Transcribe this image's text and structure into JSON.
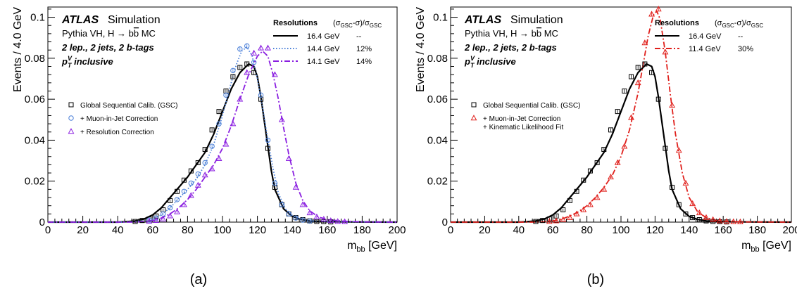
{
  "chart_data": [
    {
      "type": "line",
      "panel_label": "(a)",
      "xlabel": "m",
      "xlabel_sub": "bb",
      "xlabel_unit": "[GeV]",
      "ylabel": "Events / 4.0 GeV",
      "xlim": [
        0,
        200
      ],
      "ylim": [
        0,
        0.105
      ],
      "xticks": [
        0,
        20,
        40,
        60,
        80,
        100,
        120,
        140,
        160,
        180,
        200
      ],
      "yticks": [
        0,
        0.02,
        0.04,
        0.06,
        0.08,
        0.1
      ],
      "ytick_labels": [
        "0",
        "0.02",
        "0.04",
        "0.06",
        "0.08",
        "0.1"
      ],
      "annotations": {
        "experiment": "ATLAS",
        "experiment_suffix": "Simulation",
        "sample_prefix": "Pythia VH, H → b",
        "sample_bbar": "b",
        "sample_suffix": " MC",
        "selection": "2 lep., 2 jets, 2 b-tags",
        "pt_p": "p",
        "pt_sup": "V",
        "pt_sub": "T",
        "pt_rest": " inclusive"
      },
      "resolution_table": {
        "title": "Resolutions",
        "formula": "(σ",
        "formula_sub1": "GSC",
        "formula_mid": "-σ)/σ",
        "formula_sub2": "GSC",
        "rows": [
          {
            "width": "16.4 GeV",
            "improvement": "--",
            "color": "#000000",
            "dash": "solid"
          },
          {
            "width": "14.4 GeV",
            "improvement": "12%",
            "color": "#4a7fd8",
            "dash": "dotted"
          },
          {
            "width": "14.1 GeV",
            "improvement": "14%",
            "color": "#8a1ee0",
            "dash": "dashdot"
          }
        ]
      },
      "legend": [
        {
          "label": "Global Sequential Calib. (GSC)",
          "marker": "square",
          "color": "#000000"
        },
        {
          "label": "+ Muon-in-Jet Correction",
          "marker": "circle",
          "color": "#4a7fd8"
        },
        {
          "label": "+ Resolution Correction",
          "marker": "triangle",
          "color": "#8a1ee0"
        }
      ],
      "series": [
        {
          "marker": "square",
          "color": "#000000",
          "dash": "solid",
          "x": [
            50,
            54,
            58,
            62,
            66,
            70,
            74,
            78,
            82,
            86,
            90,
            94,
            98,
            102,
            106,
            110,
            114,
            118,
            122,
            126,
            130,
            134,
            138,
            142,
            146,
            150,
            154,
            158,
            162
          ],
          "y": [
            0.0003,
            0.0008,
            0.0015,
            0.003,
            0.006,
            0.0105,
            0.015,
            0.0205,
            0.025,
            0.029,
            0.0355,
            0.045,
            0.054,
            0.064,
            0.071,
            0.0755,
            0.0772,
            0.073,
            0.06,
            0.036,
            0.017,
            0.0085,
            0.004,
            0.0022,
            0.0012,
            0.0006,
            0.0003,
            0.0002,
            0.0001
          ],
          "curve_x": [
            0,
            40,
            45,
            50,
            55,
            60,
            65,
            70,
            75,
            80,
            85,
            90,
            95,
            100,
            105,
            110,
            115,
            118,
            120,
            122,
            125,
            128,
            130,
            135,
            140,
            145,
            150,
            160,
            170,
            200
          ],
          "curve_y": [
            0,
            0,
            0.0002,
            0.0006,
            0.0015,
            0.0035,
            0.007,
            0.012,
            0.017,
            0.022,
            0.028,
            0.034,
            0.043,
            0.054,
            0.065,
            0.073,
            0.0772,
            0.076,
            0.071,
            0.061,
            0.043,
            0.025,
            0.016,
            0.0065,
            0.0028,
            0.0013,
            0.0006,
            0.0002,
            0.0001,
            0
          ]
        },
        {
          "marker": "circle",
          "color": "#4a7fd8",
          "dash": "dotted",
          "x": [
            58,
            62,
            66,
            70,
            74,
            78,
            82,
            86,
            90,
            94,
            98,
            102,
            106,
            110,
            114,
            118,
            122,
            126,
            130,
            134,
            138,
            142,
            146,
            150
          ],
          "y": [
            0.001,
            0.002,
            0.004,
            0.007,
            0.011,
            0.015,
            0.019,
            0.0235,
            0.029,
            0.037,
            0.048,
            0.062,
            0.074,
            0.0845,
            0.086,
            0.078,
            0.062,
            0.04,
            0.019,
            0.0085,
            0.004,
            0.002,
            0.001,
            0.0005
          ],
          "curve_x": [
            0,
            45,
            50,
            55,
            60,
            65,
            70,
            75,
            80,
            85,
            90,
            95,
            100,
            105,
            108,
            111,
            114,
            117,
            120,
            123,
            126,
            129,
            132,
            136,
            140,
            145,
            150,
            160,
            200
          ],
          "curve_y": [
            0,
            0,
            0.0003,
            0.0008,
            0.0015,
            0.0035,
            0.007,
            0.0115,
            0.016,
            0.021,
            0.028,
            0.038,
            0.052,
            0.068,
            0.077,
            0.0835,
            0.0855,
            0.081,
            0.07,
            0.056,
            0.04,
            0.026,
            0.014,
            0.0065,
            0.0032,
            0.0014,
            0.0006,
            0.0002,
            0
          ]
        },
        {
          "marker": "triangle",
          "color": "#8a1ee0",
          "dash": "dashdot",
          "x": [
            58,
            62,
            66,
            70,
            74,
            78,
            82,
            86,
            90,
            94,
            98,
            102,
            106,
            110,
            114,
            118,
            122,
            126,
            130,
            134,
            138,
            142,
            146,
            150,
            154,
            158,
            162,
            166,
            170
          ],
          "y": [
            0.0004,
            0.0008,
            0.0015,
            0.003,
            0.005,
            0.0085,
            0.013,
            0.018,
            0.023,
            0.026,
            0.031,
            0.038,
            0.048,
            0.06,
            0.073,
            0.0825,
            0.085,
            0.085,
            0.072,
            0.05,
            0.031,
            0.017,
            0.0085,
            0.0045,
            0.0025,
            0.0014,
            0.0007,
            0.0003,
            0.0002
          ],
          "curve_x": [
            0,
            50,
            55,
            60,
            65,
            70,
            75,
            80,
            85,
            90,
            95,
            100,
            105,
            110,
            115,
            120,
            123,
            126,
            129,
            132,
            135,
            138,
            142,
            146,
            150,
            155,
            160,
            170,
            180,
            200
          ],
          "curve_y": [
            0,
            0,
            0.0003,
            0.0008,
            0.002,
            0.004,
            0.007,
            0.011,
            0.016,
            0.022,
            0.028,
            0.036,
            0.047,
            0.06,
            0.072,
            0.081,
            0.0835,
            0.081,
            0.072,
            0.06,
            0.046,
            0.033,
            0.019,
            0.0105,
            0.0055,
            0.0025,
            0.0012,
            0.0004,
            0.0001,
            0
          ]
        }
      ]
    },
    {
      "type": "line",
      "panel_label": "(b)",
      "xlabel": "m",
      "xlabel_sub": "bb",
      "xlabel_unit": "[GeV]",
      "ylabel": "Events / 4.0 GeV",
      "xlim": [
        0,
        200
      ],
      "ylim": [
        0,
        0.105
      ],
      "xticks": [
        0,
        20,
        40,
        60,
        80,
        100,
        120,
        140,
        160,
        180,
        200
      ],
      "yticks": [
        0,
        0.02,
        0.04,
        0.06,
        0.08,
        0.1
      ],
      "ytick_labels": [
        "0",
        "0.02",
        "0.04",
        "0.06",
        "0.08",
        "0.1"
      ],
      "annotations": {
        "experiment": "ATLAS",
        "experiment_suffix": "Simulation",
        "sample_prefix": "Pythia VH, H → b",
        "sample_bbar": "b",
        "sample_suffix": " MC",
        "selection": "2 lep., 2 jets, 2 b-tags",
        "pt_p": "p",
        "pt_sup": "V",
        "pt_sub": "T",
        "pt_rest": " inclusive"
      },
      "resolution_table": {
        "title": "Resolutions",
        "formula": "(σ",
        "formula_sub1": "GSC",
        "formula_mid": "-σ)/σ",
        "formula_sub2": "GSC",
        "rows": [
          {
            "width": "16.4 GeV",
            "improvement": "--",
            "color": "#000000",
            "dash": "solid"
          },
          {
            "width": "11.4 GeV",
            "improvement": "30%",
            "color": "#e0201c",
            "dash": "dashdot"
          }
        ]
      },
      "legend": [
        {
          "label": "Global Sequential Calib. (GSC)",
          "marker": "square",
          "color": "#000000"
        },
        {
          "label": "+ Muon-in-Jet Correction",
          "label2": "+ Kinematic Likelihood Fit",
          "marker": "triangle",
          "color": "#e0201c"
        }
      ],
      "series": [
        {
          "marker": "square",
          "color": "#000000",
          "dash": "solid",
          "x": [
            50,
            54,
            58,
            62,
            66,
            70,
            74,
            78,
            82,
            86,
            90,
            94,
            98,
            102,
            106,
            110,
            114,
            118,
            122,
            126,
            130,
            134,
            138,
            142,
            146,
            150,
            154,
            158,
            162
          ],
          "y": [
            0.0003,
            0.0008,
            0.0015,
            0.003,
            0.006,
            0.0105,
            0.015,
            0.0205,
            0.025,
            0.029,
            0.0355,
            0.045,
            0.054,
            0.064,
            0.071,
            0.0755,
            0.0772,
            0.073,
            0.06,
            0.036,
            0.017,
            0.0085,
            0.004,
            0.0022,
            0.0012,
            0.0006,
            0.0003,
            0.0002,
            0.0001
          ],
          "curve_x": [
            0,
            40,
            45,
            50,
            55,
            60,
            65,
            70,
            75,
            80,
            85,
            90,
            95,
            100,
            105,
            110,
            115,
            118,
            120,
            122,
            125,
            128,
            130,
            135,
            140,
            145,
            150,
            160,
            170,
            200
          ],
          "curve_y": [
            0,
            0,
            0.0002,
            0.0006,
            0.0015,
            0.0035,
            0.007,
            0.012,
            0.017,
            0.022,
            0.028,
            0.034,
            0.043,
            0.054,
            0.065,
            0.073,
            0.0772,
            0.076,
            0.071,
            0.061,
            0.043,
            0.025,
            0.016,
            0.0065,
            0.0028,
            0.0013,
            0.0006,
            0.0002,
            0.0001,
            0
          ]
        },
        {
          "marker": "triangle",
          "color": "#e0201c",
          "dash": "dashdot",
          "x": [
            58,
            62,
            66,
            70,
            74,
            78,
            82,
            86,
            90,
            94,
            98,
            102,
            106,
            110,
            114,
            118,
            122,
            126,
            130,
            134,
            138,
            142,
            146,
            150,
            154,
            158,
            162,
            166,
            170
          ],
          "y": [
            0.0003,
            0.0006,
            0.0012,
            0.0022,
            0.004,
            0.006,
            0.0085,
            0.012,
            0.016,
            0.022,
            0.029,
            0.037,
            0.051,
            0.068,
            0.0875,
            0.1015,
            0.104,
            0.083,
            0.057,
            0.035,
            0.019,
            0.009,
            0.0045,
            0.0022,
            0.0012,
            0.0006,
            0.0003,
            0.0002,
            0.0001
          ],
          "curve_x": [
            0,
            50,
            55,
            60,
            65,
            70,
            75,
            80,
            85,
            90,
            95,
            100,
            105,
            110,
            113,
            116,
            119,
            121,
            123,
            126,
            129,
            132,
            136,
            140,
            145,
            150,
            155,
            160,
            170,
            200
          ],
          "curve_y": [
            0,
            0,
            0.0002,
            0.0006,
            0.0014,
            0.003,
            0.005,
            0.008,
            0.012,
            0.017,
            0.023,
            0.032,
            0.045,
            0.063,
            0.077,
            0.091,
            0.101,
            0.103,
            0.099,
            0.083,
            0.062,
            0.043,
            0.024,
            0.012,
            0.005,
            0.0022,
            0.001,
            0.0004,
            0.0001,
            0
          ]
        }
      ]
    }
  ]
}
